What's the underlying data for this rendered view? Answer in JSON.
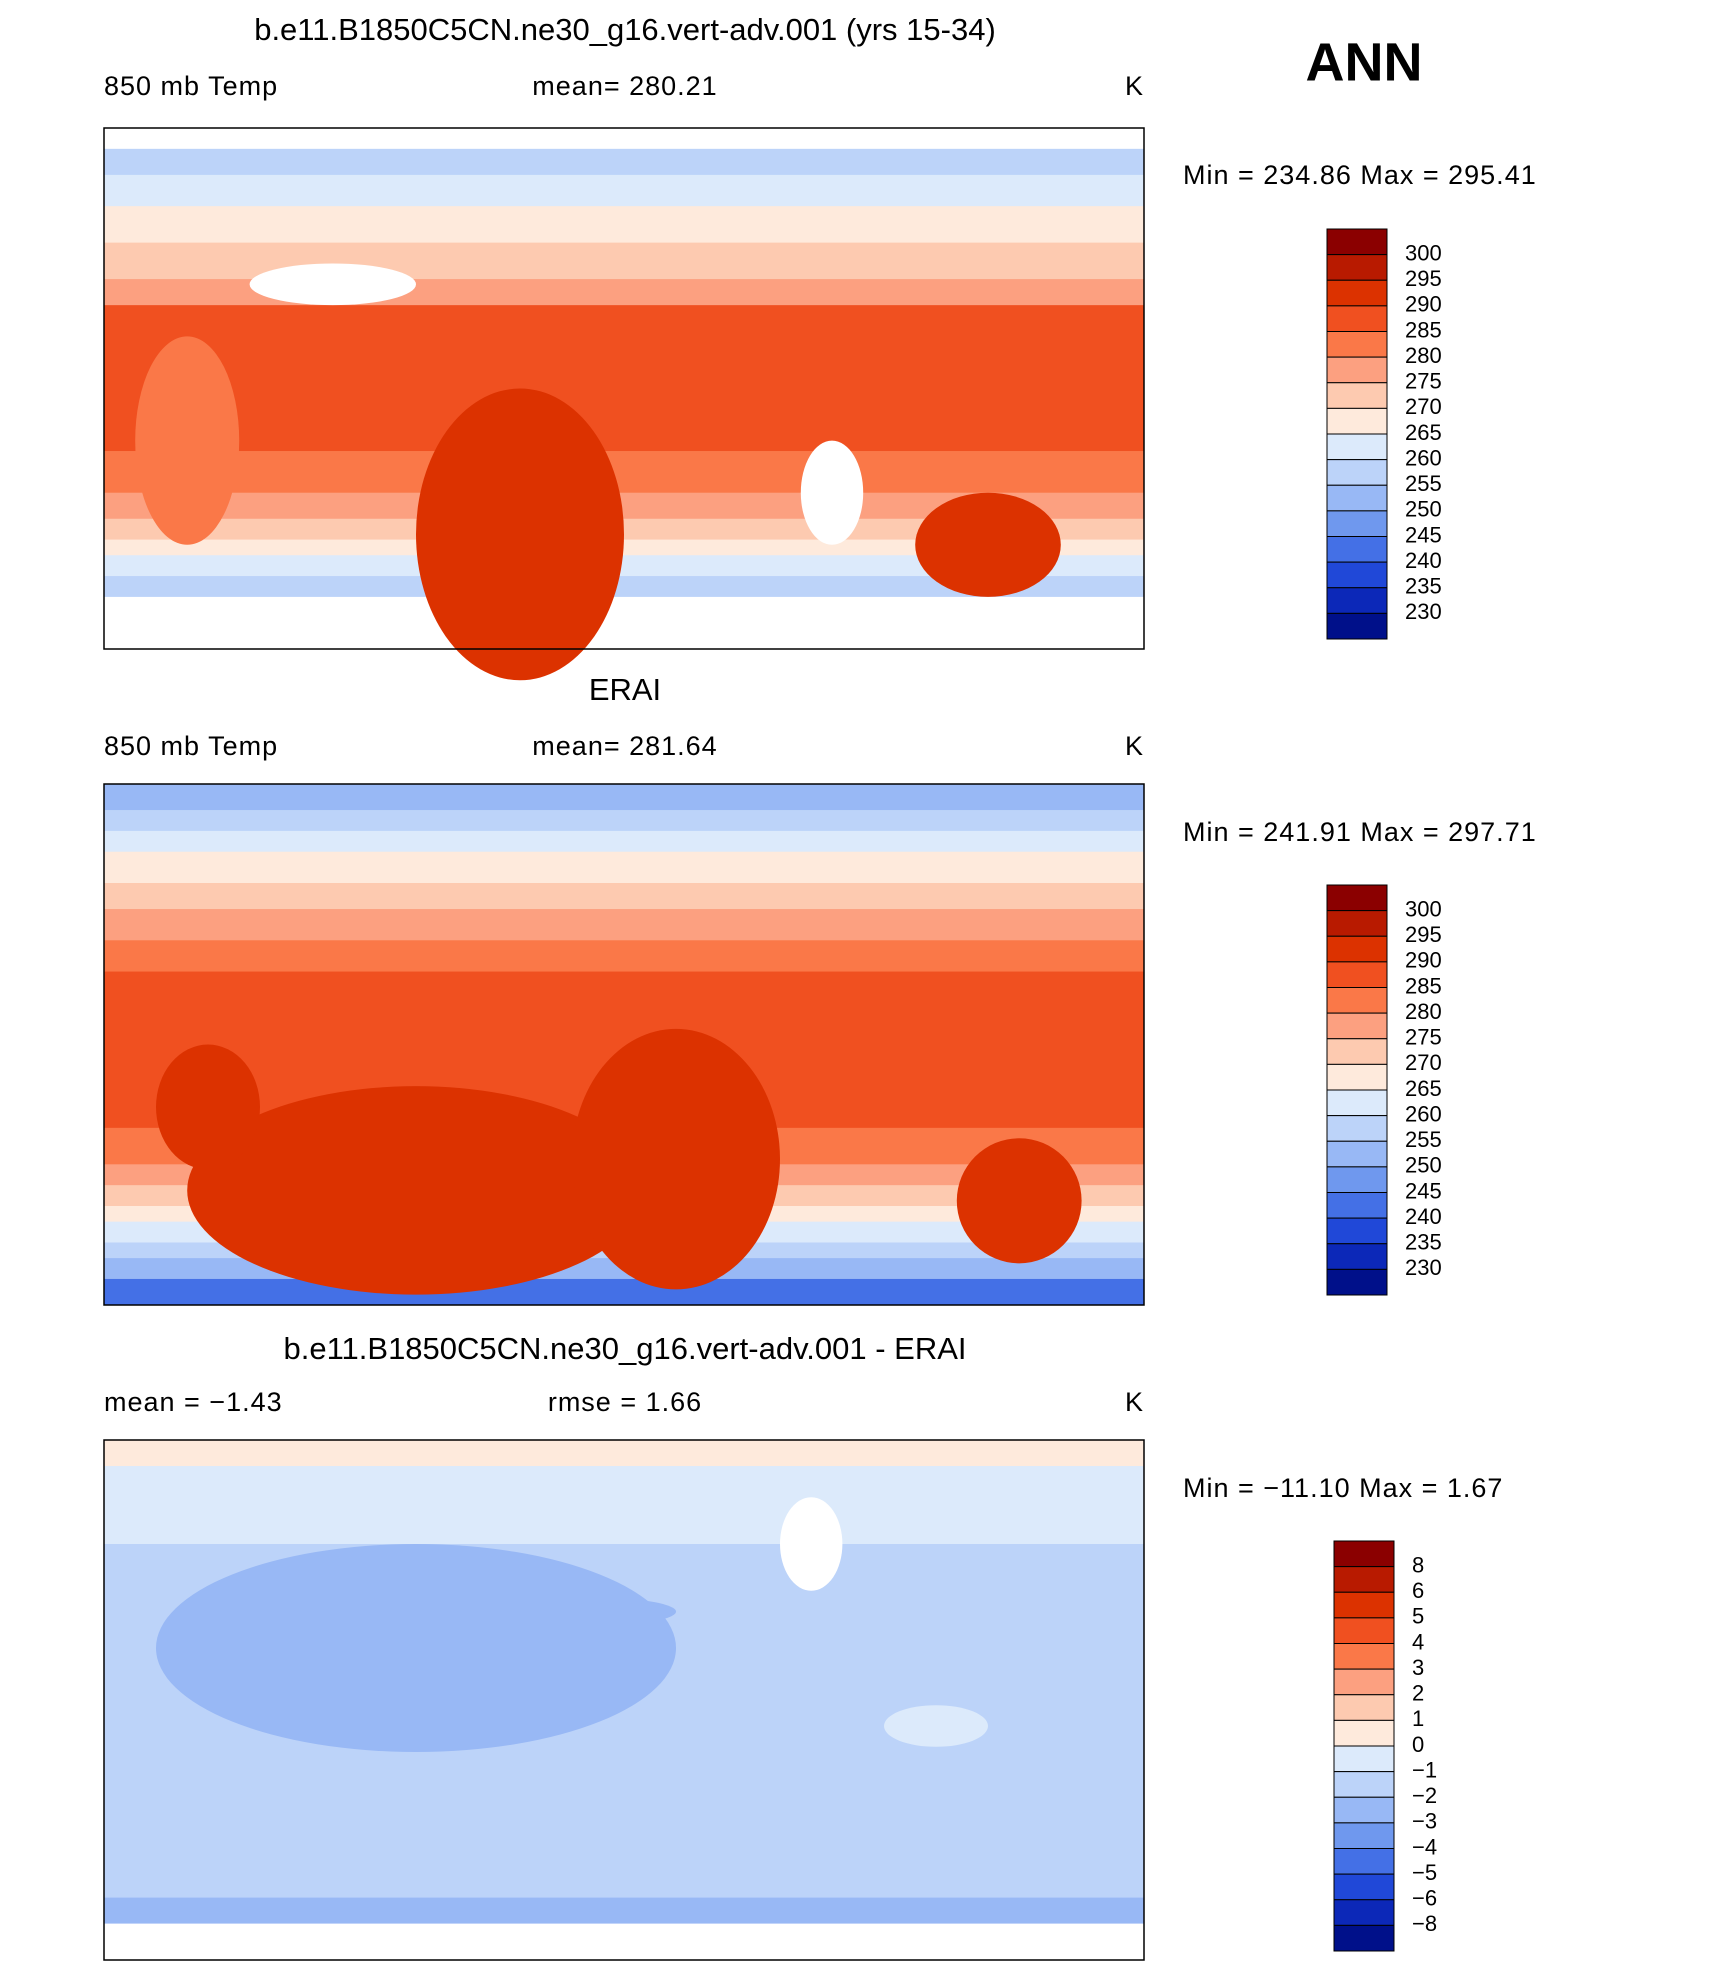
{
  "header": {
    "title": "ANN"
  },
  "panels": [
    {
      "title": "b.e11.B1850C5CN.ne30_g16.vert-adv.001 (yrs 15-34)",
      "left": "850 mb Temp",
      "center": "mean= 280.21",
      "right": "K",
      "stats": "Min = 234.86 Max = 295.41",
      "levels": [
        "300",
        "295",
        "290",
        "285",
        "280",
        "275",
        "270",
        "265",
        "260",
        "255",
        "250",
        "245",
        "240",
        "235",
        "230"
      ]
    },
    {
      "title": "ERAI",
      "left": "850 mb Temp",
      "center": "mean= 281.64",
      "right": "K",
      "stats": "Min = 241.91 Max = 297.71",
      "levels": [
        "300",
        "295",
        "290",
        "285",
        "280",
        "275",
        "270",
        "265",
        "260",
        "255",
        "250",
        "245",
        "240",
        "235",
        "230"
      ]
    },
    {
      "title": "b.e11.B1850C5CN.ne30_g16.vert-adv.001 - ERAI",
      "left": "mean =   −1.43",
      "center": "rmse =    1.66",
      "right": "K",
      "stats": "Min = −11.10 Max =    1.67",
      "levels": [
        "8",
        "6",
        "5",
        "4",
        "3",
        "2",
        "1",
        "0",
        "−1",
        "−2",
        "−3",
        "−4",
        "−5",
        "−6",
        "−8"
      ]
    }
  ],
  "colors": [
    "#8b0000",
    "#b81a00",
    "#dc3200",
    "#f05020",
    "#fa7848",
    "#fca080",
    "#fdcab0",
    "#feeadc",
    "#dceafb",
    "#bcd3f9",
    "#98b8f5",
    "#6f98ee",
    "#4470e6",
    "#2048d8",
    "#0c28b8",
    "#00108a"
  ]
}
